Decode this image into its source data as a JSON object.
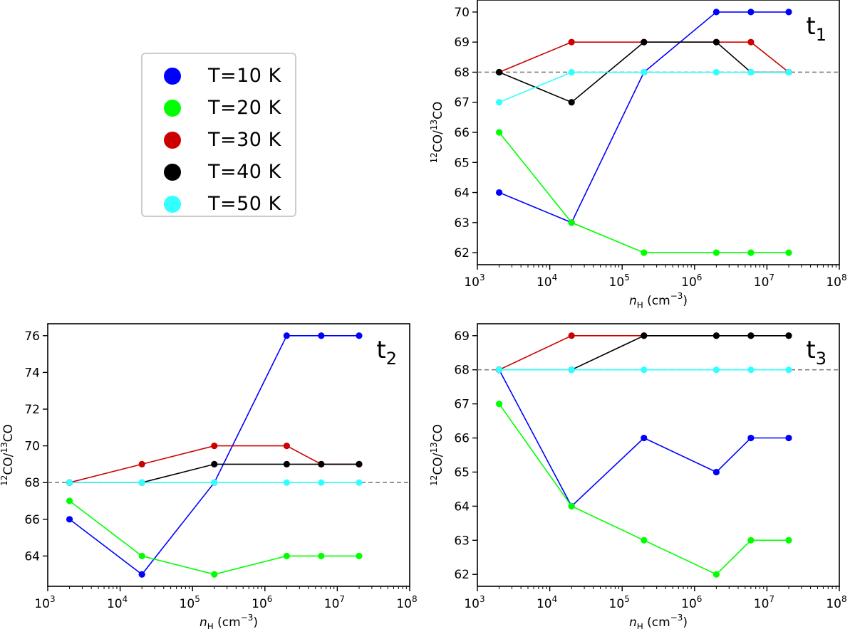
{
  "colors": {
    "T10": "#0000ff",
    "T20": "#00ff00",
    "T30": "#cc0000",
    "T40": "#000000",
    "T50": "#33ffff",
    "ref": "#808080"
  },
  "legend": {
    "entries": [
      {
        "key": "T10",
        "label": "T=10 K"
      },
      {
        "key": "T20",
        "label": "T=20 K"
      },
      {
        "key": "T30",
        "label": "T=30 K"
      },
      {
        "key": "T40",
        "label": "T=40 K"
      },
      {
        "key": "T50",
        "label": "T=50 K"
      }
    ]
  },
  "chart_data": [
    {
      "id": "t1",
      "type": "line",
      "panel_label": "t",
      "panel_sub": "1",
      "xlabel_main": "n",
      "xlabel_sub": "H",
      "xlabel_unit": " (cm",
      "xlabel_exp": "−3",
      "xlabel_close": ")",
      "ylabel_pre_sup": "12",
      "ylabel_mid": "CO/",
      "ylabel_mid_sup": "13",
      "ylabel_end": "CO",
      "xscale": "log",
      "xlim": [
        3,
        8
      ],
      "xticks": [
        {
          "exp": 3,
          "label": "3"
        },
        {
          "exp": 4,
          "label": "4"
        },
        {
          "exp": 5,
          "label": "5"
        },
        {
          "exp": 6,
          "label": "6"
        },
        {
          "exp": 7,
          "label": "7"
        },
        {
          "exp": 8,
          "label": "8"
        }
      ],
      "ylim": [
        61.6,
        70.4
      ],
      "yticks": [
        62,
        63,
        64,
        65,
        66,
        67,
        68,
        69,
        70
      ],
      "reference_line": 68,
      "x": [
        2000,
        20000,
        200000,
        2000000,
        6000000,
        20000000
      ],
      "series": [
        {
          "name": "T=10 K",
          "key": "T10",
          "values": [
            64,
            63,
            68,
            70,
            70,
            70
          ]
        },
        {
          "name": "T=20 K",
          "key": "T20",
          "values": [
            66,
            63,
            62,
            62,
            62,
            62
          ]
        },
        {
          "name": "T=30 K",
          "key": "T30",
          "values": [
            68,
            69,
            69,
            69,
            69,
            68
          ]
        },
        {
          "name": "T=40 K",
          "key": "T40",
          "values": [
            68,
            67,
            69,
            69,
            68,
            68
          ]
        },
        {
          "name": "T=50 K",
          "key": "T50",
          "values": [
            67,
            68,
            68,
            68,
            68,
            68
          ]
        }
      ]
    },
    {
      "id": "t2",
      "type": "line",
      "panel_label": "t",
      "panel_sub": "2",
      "xlabel_main": "n",
      "xlabel_sub": "H",
      "xlabel_unit": " (cm",
      "xlabel_exp": "−3",
      "xlabel_close": ")",
      "ylabel_pre_sup": "12",
      "ylabel_mid": "CO/",
      "ylabel_mid_sup": "13",
      "ylabel_end": "CO",
      "xscale": "log",
      "xlim": [
        3,
        8
      ],
      "xticks": [
        {
          "exp": 3,
          "label": "3"
        },
        {
          "exp": 4,
          "label": "4"
        },
        {
          "exp": 5,
          "label": "5"
        },
        {
          "exp": 6,
          "label": "6"
        },
        {
          "exp": 7,
          "label": "7"
        },
        {
          "exp": 8,
          "label": "8"
        }
      ],
      "ylim": [
        62.35,
        76.65
      ],
      "yticks": [
        64,
        66,
        68,
        70,
        72,
        74,
        76
      ],
      "reference_line": 68,
      "x": [
        2000,
        20000,
        200000,
        2000000,
        6000000,
        20000000
      ],
      "series": [
        {
          "name": "T=10 K",
          "key": "T10",
          "values": [
            66,
            63,
            68,
            76,
            76,
            76
          ]
        },
        {
          "name": "T=20 K",
          "key": "T20",
          "values": [
            67,
            64,
            63,
            64,
            64,
            64
          ]
        },
        {
          "name": "T=30 K",
          "key": "T30",
          "values": [
            68,
            69,
            70,
            70,
            69,
            69
          ]
        },
        {
          "name": "T=40 K",
          "key": "T40",
          "values": [
            68,
            68,
            69,
            69,
            69,
            69
          ]
        },
        {
          "name": "T=50 K",
          "key": "T50",
          "values": [
            68,
            68,
            68,
            68,
            68,
            68
          ]
        }
      ]
    },
    {
      "id": "t3",
      "type": "line",
      "panel_label": "t",
      "panel_sub": "3",
      "xlabel_main": "n",
      "xlabel_sub": "H",
      "xlabel_unit": " (cm",
      "xlabel_exp": "−3",
      "xlabel_close": ")",
      "ylabel_pre_sup": "12",
      "ylabel_mid": "CO/",
      "ylabel_mid_sup": "13",
      "ylabel_end": "CO",
      "xscale": "log",
      "xlim": [
        3,
        8
      ],
      "xticks": [
        {
          "exp": 3,
          "label": "3"
        },
        {
          "exp": 4,
          "label": "4"
        },
        {
          "exp": 5,
          "label": "5"
        },
        {
          "exp": 6,
          "label": "6"
        },
        {
          "exp": 7,
          "label": "7"
        },
        {
          "exp": 8,
          "label": "8"
        }
      ],
      "ylim": [
        61.65,
        69.35
      ],
      "yticks": [
        62,
        63,
        64,
        65,
        66,
        67,
        68,
        69
      ],
      "reference_line": 68,
      "x": [
        2000,
        20000,
        200000,
        2000000,
        6000000,
        20000000
      ],
      "series": [
        {
          "name": "T=10 K",
          "key": "T10",
          "values": [
            68,
            64,
            66,
            65,
            66,
            66
          ]
        },
        {
          "name": "T=20 K",
          "key": "T20",
          "values": [
            67,
            64,
            63,
            62,
            63,
            63
          ]
        },
        {
          "name": "T=30 K",
          "key": "T30",
          "values": [
            68,
            69,
            69,
            69,
            69,
            69
          ]
        },
        {
          "name": "T=40 K",
          "key": "T40",
          "values": [
            68,
            68,
            69,
            69,
            69,
            69
          ]
        },
        {
          "name": "T=50 K",
          "key": "T50",
          "values": [
            68,
            68,
            68,
            68,
            68,
            68
          ]
        }
      ]
    }
  ]
}
